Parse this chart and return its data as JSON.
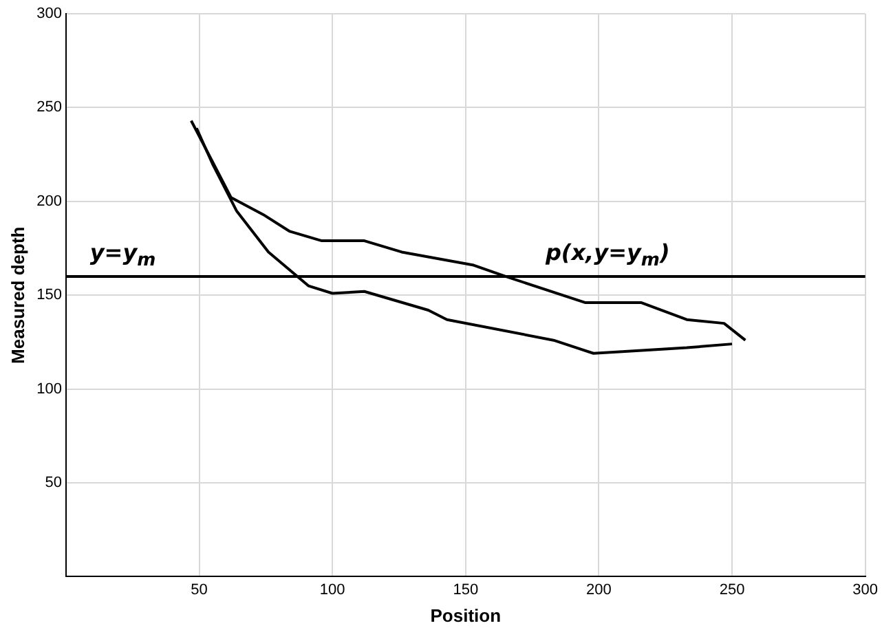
{
  "chart_data": {
    "type": "line",
    "xlabel": "Position",
    "ylabel": "Measured depth",
    "xlim": [
      0,
      300
    ],
    "ylim": [
      0,
      300
    ],
    "xticks": [
      50,
      100,
      150,
      200,
      250,
      300
    ],
    "yticks": [
      50,
      100,
      150,
      200,
      250,
      300
    ],
    "grid": true,
    "legend": false,
    "marker": "none",
    "line_style": "solid",
    "series": [
      {
        "color": "#000000",
        "x": [
          47,
          62,
          74,
          84,
          96,
          112,
          126,
          153,
          165,
          195,
          216,
          233,
          247,
          255
        ],
        "values": [
          243,
          202,
          193,
          184,
          179,
          179,
          173,
          166,
          160,
          146,
          146,
          137,
          135,
          126
        ]
      },
      {
        "color": "#000000",
        "x": [
          49,
          55,
          64,
          76,
          91,
          100,
          112,
          136,
          143,
          183,
          198,
          233,
          250
        ],
        "values": [
          239,
          220,
          195,
          173,
          155,
          151,
          152,
          142,
          137,
          126,
          119,
          122,
          124
        ]
      }
    ],
    "ref_lines": [
      {
        "axis": "y",
        "value": 160,
        "color": "#000000"
      }
    ],
    "annotations": [
      "y=y$_{m}$",
      "p(x,y=y$_{m}$)"
    ]
  }
}
